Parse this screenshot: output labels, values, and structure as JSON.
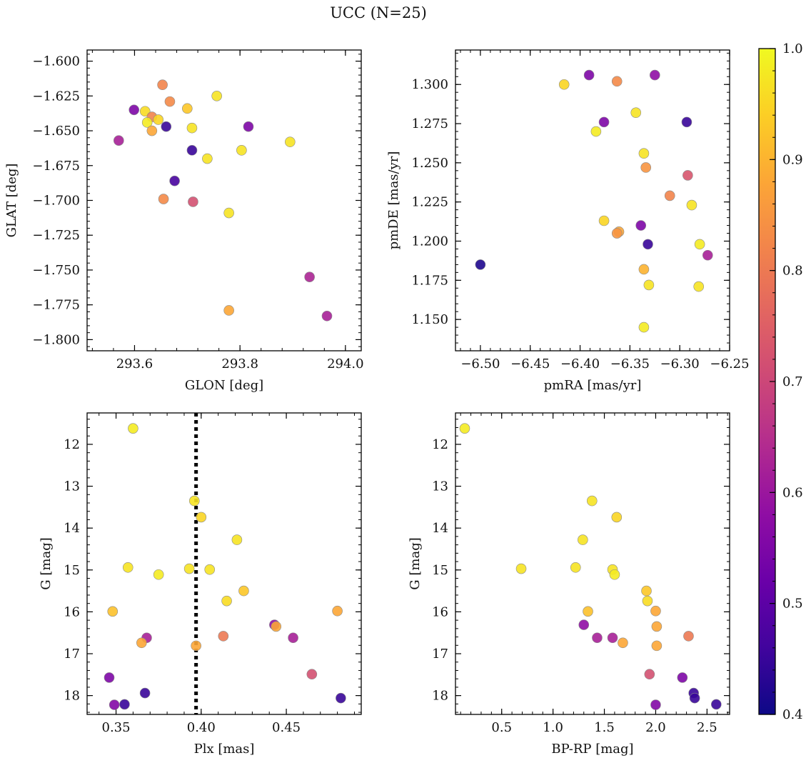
{
  "figure": {
    "title": "UCC (N=25)"
  },
  "colorbar": {
    "range": [
      0.4,
      1.0
    ],
    "ticks": [
      "0.4",
      "0.5",
      "0.6",
      "0.7",
      "0.8",
      "0.9",
      "1.0"
    ],
    "colormap": "plasma"
  },
  "chart_data": [
    {
      "type": "scatter",
      "xlabel": "GLON [deg]",
      "ylabel": "GLAT [deg]",
      "xlim": [
        293.51,
        294.03
      ],
      "ylim": [
        -1.808,
        -1.592
      ],
      "xticks": [
        "293.6",
        "293.8",
        "294.0"
      ],
      "yticks": [
        "-1.600",
        "-1.625",
        "-1.650",
        "-1.675",
        "-1.700",
        "-1.725",
        "-1.750",
        "-1.775",
        "-1.800"
      ],
      "points": [
        {
          "x": 293.653,
          "y": -1.617,
          "p": 0.82
        },
        {
          "x": 293.667,
          "y": -1.629,
          "p": 0.83
        },
        {
          "x": 293.756,
          "y": -1.625,
          "p": 0.97
        },
        {
          "x": 293.599,
          "y": -1.635,
          "p": 0.55
        },
        {
          "x": 293.62,
          "y": -1.636,
          "p": 0.96
        },
        {
          "x": 293.633,
          "y": -1.64,
          "p": 0.82
        },
        {
          "x": 293.645,
          "y": -1.642,
          "p": 0.95
        },
        {
          "x": 293.624,
          "y": -1.644,
          "p": 0.98
        },
        {
          "x": 293.7,
          "y": -1.634,
          "p": 0.93
        },
        {
          "x": 293.66,
          "y": -1.647,
          "p": 0.45
        },
        {
          "x": 293.633,
          "y": -1.65,
          "p": 0.88
        },
        {
          "x": 293.709,
          "y": -1.648,
          "p": 0.97
        },
        {
          "x": 293.816,
          "y": -1.647,
          "p": 0.55
        },
        {
          "x": 293.57,
          "y": -1.657,
          "p": 0.62
        },
        {
          "x": 293.895,
          "y": -1.658,
          "p": 0.97
        },
        {
          "x": 293.709,
          "y": -1.664,
          "p": 0.45
        },
        {
          "x": 293.803,
          "y": -1.664,
          "p": 0.97
        },
        {
          "x": 293.738,
          "y": -1.67,
          "p": 0.97
        },
        {
          "x": 293.676,
          "y": -1.686,
          "p": 0.47
        },
        {
          "x": 293.655,
          "y": -1.699,
          "p": 0.83
        },
        {
          "x": 293.711,
          "y": -1.701,
          "p": 0.72
        },
        {
          "x": 293.779,
          "y": -1.709,
          "p": 0.97
        },
        {
          "x": 293.932,
          "y": -1.755,
          "p": 0.63
        },
        {
          "x": 293.779,
          "y": -1.779,
          "p": 0.88
        },
        {
          "x": 293.965,
          "y": -1.783,
          "p": 0.62
        }
      ]
    },
    {
      "type": "scatter",
      "xlabel": "pmRA [mas/yr]",
      "ylabel": "pmDE [mas/yr]",
      "xlim": [
        -6.525,
        -6.25
      ],
      "ylim": [
        1.13,
        1.322
      ],
      "xticks": [
        "-6.50",
        "-6.45",
        "-6.40",
        "-6.35",
        "-6.30",
        "-6.25"
      ],
      "yticks": [
        "1.150",
        "1.175",
        "1.200",
        "1.225",
        "1.250",
        "1.275",
        "1.300"
      ],
      "points": [
        {
          "x": -6.391,
          "y": 1.306,
          "p": 0.55
        },
        {
          "x": -6.325,
          "y": 1.306,
          "p": 0.58
        },
        {
          "x": -6.416,
          "y": 1.3,
          "p": 0.95
        },
        {
          "x": -6.363,
          "y": 1.302,
          "p": 0.83
        },
        {
          "x": -6.344,
          "y": 1.282,
          "p": 0.97
        },
        {
          "x": -6.376,
          "y": 1.276,
          "p": 0.55
        },
        {
          "x": -6.293,
          "y": 1.276,
          "p": 0.45
        },
        {
          "x": -6.384,
          "y": 1.27,
          "p": 0.98
        },
        {
          "x": -6.336,
          "y": 1.256,
          "p": 0.97
        },
        {
          "x": -6.334,
          "y": 1.247,
          "p": 0.85
        },
        {
          "x": -6.292,
          "y": 1.242,
          "p": 0.73
        },
        {
          "x": -6.31,
          "y": 1.229,
          "p": 0.82
        },
        {
          "x": -6.288,
          "y": 1.223,
          "p": 0.97
        },
        {
          "x": -6.376,
          "y": 1.213,
          "p": 0.95
        },
        {
          "x": -6.339,
          "y": 1.21,
          "p": 0.55
        },
        {
          "x": -6.361,
          "y": 1.206,
          "p": 0.88
        },
        {
          "x": -6.363,
          "y": 1.205,
          "p": 0.85
        },
        {
          "x": -6.332,
          "y": 1.198,
          "p": 0.45
        },
        {
          "x": -6.28,
          "y": 1.198,
          "p": 0.98
        },
        {
          "x": -6.272,
          "y": 1.191,
          "p": 0.62
        },
        {
          "x": -6.5,
          "y": 1.185,
          "p": 0.42
        },
        {
          "x": -6.336,
          "y": 1.182,
          "p": 0.9
        },
        {
          "x": -6.331,
          "y": 1.172,
          "p": 0.97
        },
        {
          "x": -6.281,
          "y": 1.171,
          "p": 0.97
        },
        {
          "x": -6.336,
          "y": 1.145,
          "p": 0.98
        }
      ]
    },
    {
      "type": "scatter",
      "xlabel": "Plx [mas]",
      "ylabel": "G [mag]",
      "xlim": [
        0.333,
        0.494
      ],
      "ylim": [
        18.45,
        11.25
      ],
      "y_inverted": true,
      "xticks": [
        "0.35",
        "0.40",
        "0.45"
      ],
      "yticks": [
        "12",
        "13",
        "14",
        "15",
        "16",
        "17",
        "18"
      ],
      "vline": {
        "x": 0.397,
        "style": "dotted",
        "color": "#000000"
      },
      "points": [
        {
          "x": 0.36,
          "y": 11.62,
          "p": 0.98
        },
        {
          "x": 0.396,
          "y": 13.35,
          "p": 0.97
        },
        {
          "x": 0.4,
          "y": 13.74,
          "p": 0.95
        },
        {
          "x": 0.421,
          "y": 14.28,
          "p": 0.97
        },
        {
          "x": 0.357,
          "y": 14.94,
          "p": 0.97
        },
        {
          "x": 0.375,
          "y": 15.11,
          "p": 0.98
        },
        {
          "x": 0.393,
          "y": 14.97,
          "p": 0.97
        },
        {
          "x": 0.405,
          "y": 14.99,
          "p": 0.97
        },
        {
          "x": 0.425,
          "y": 15.5,
          "p": 0.93
        },
        {
          "x": 0.415,
          "y": 15.74,
          "p": 0.96
        },
        {
          "x": 0.348,
          "y": 15.99,
          "p": 0.92
        },
        {
          "x": 0.48,
          "y": 15.98,
          "p": 0.88
        },
        {
          "x": 0.368,
          "y": 16.62,
          "p": 0.62
        },
        {
          "x": 0.365,
          "y": 16.74,
          "p": 0.88
        },
        {
          "x": 0.413,
          "y": 16.58,
          "p": 0.8
        },
        {
          "x": 0.443,
          "y": 16.31,
          "p": 0.58
        },
        {
          "x": 0.444,
          "y": 16.35,
          "p": 0.88
        },
        {
          "x": 0.454,
          "y": 16.62,
          "p": 0.62
        },
        {
          "x": 0.397,
          "y": 16.81,
          "p": 0.88
        },
        {
          "x": 0.465,
          "y": 17.49,
          "p": 0.72
        },
        {
          "x": 0.346,
          "y": 17.57,
          "p": 0.55
        },
        {
          "x": 0.367,
          "y": 17.94,
          "p": 0.45
        },
        {
          "x": 0.482,
          "y": 18.06,
          "p": 0.45
        },
        {
          "x": 0.349,
          "y": 18.22,
          "p": 0.56
        },
        {
          "x": 0.355,
          "y": 18.21,
          "p": 0.45
        }
      ]
    },
    {
      "type": "scatter",
      "xlabel": "BP-RP [mag]",
      "ylabel": "G [mag]",
      "xlim": [
        0.05,
        2.72
      ],
      "ylim": [
        18.45,
        11.25
      ],
      "y_inverted": true,
      "xticks": [
        "0.5",
        "1.0",
        "1.5",
        "2.0",
        "2.5"
      ],
      "yticks": [
        "12",
        "13",
        "14",
        "15",
        "16",
        "17",
        "18"
      ],
      "points": [
        {
          "x": 0.14,
          "y": 11.62,
          "p": 0.98
        },
        {
          "x": 1.38,
          "y": 13.35,
          "p": 0.97
        },
        {
          "x": 1.62,
          "y": 13.74,
          "p": 0.95
        },
        {
          "x": 1.29,
          "y": 14.28,
          "p": 0.97
        },
        {
          "x": 0.69,
          "y": 14.97,
          "p": 0.97
        },
        {
          "x": 1.22,
          "y": 14.94,
          "p": 0.97
        },
        {
          "x": 1.58,
          "y": 14.99,
          "p": 0.97
        },
        {
          "x": 1.6,
          "y": 15.11,
          "p": 0.98
        },
        {
          "x": 1.91,
          "y": 15.5,
          "p": 0.93
        },
        {
          "x": 1.92,
          "y": 15.74,
          "p": 0.96
        },
        {
          "x": 1.34,
          "y": 15.99,
          "p": 0.92
        },
        {
          "x": 2.0,
          "y": 15.98,
          "p": 0.88
        },
        {
          "x": 1.3,
          "y": 16.31,
          "p": 0.58
        },
        {
          "x": 2.01,
          "y": 16.35,
          "p": 0.88
        },
        {
          "x": 2.32,
          "y": 16.58,
          "p": 0.8
        },
        {
          "x": 1.43,
          "y": 16.62,
          "p": 0.62
        },
        {
          "x": 1.58,
          "y": 16.62,
          "p": 0.62
        },
        {
          "x": 1.68,
          "y": 16.74,
          "p": 0.88
        },
        {
          "x": 2.01,
          "y": 16.81,
          "p": 0.88
        },
        {
          "x": 1.94,
          "y": 17.49,
          "p": 0.72
        },
        {
          "x": 2.26,
          "y": 17.57,
          "p": 0.55
        },
        {
          "x": 2.37,
          "y": 17.94,
          "p": 0.45
        },
        {
          "x": 2.38,
          "y": 18.06,
          "p": 0.45
        },
        {
          "x": 2.0,
          "y": 18.22,
          "p": 0.56
        },
        {
          "x": 2.59,
          "y": 18.21,
          "p": 0.45
        }
      ]
    }
  ]
}
